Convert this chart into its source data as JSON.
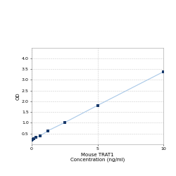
{
  "x_data": [
    0.0,
    0.078,
    0.156,
    0.313,
    0.625,
    1.25,
    2.5,
    5.0,
    10.0
  ],
  "y_data": [
    0.212,
    0.241,
    0.262,
    0.318,
    0.385,
    0.637,
    1.012,
    1.812,
    3.38
  ],
  "line_color": "#a8c8e8",
  "marker_color": "#1a3a6b",
  "marker_size": 3,
  "xlabel_line1": "Mouse TRAT1",
  "xlabel_line2": "Concentration (ng/ml)",
  "ylabel": "OD",
  "xlim": [
    0,
    10
  ],
  "ylim": [
    0,
    4.5
  ],
  "yticks": [
    0.5,
    1.0,
    1.5,
    2.0,
    2.5,
    3.0,
    3.5,
    4.0
  ],
  "xticks": [
    0,
    5,
    10
  ],
  "grid_color": "#cccccc",
  "background_color": "#ffffff",
  "axis_fontsize": 5.0,
  "tick_fontsize": 4.5,
  "linewidth": 0.8
}
